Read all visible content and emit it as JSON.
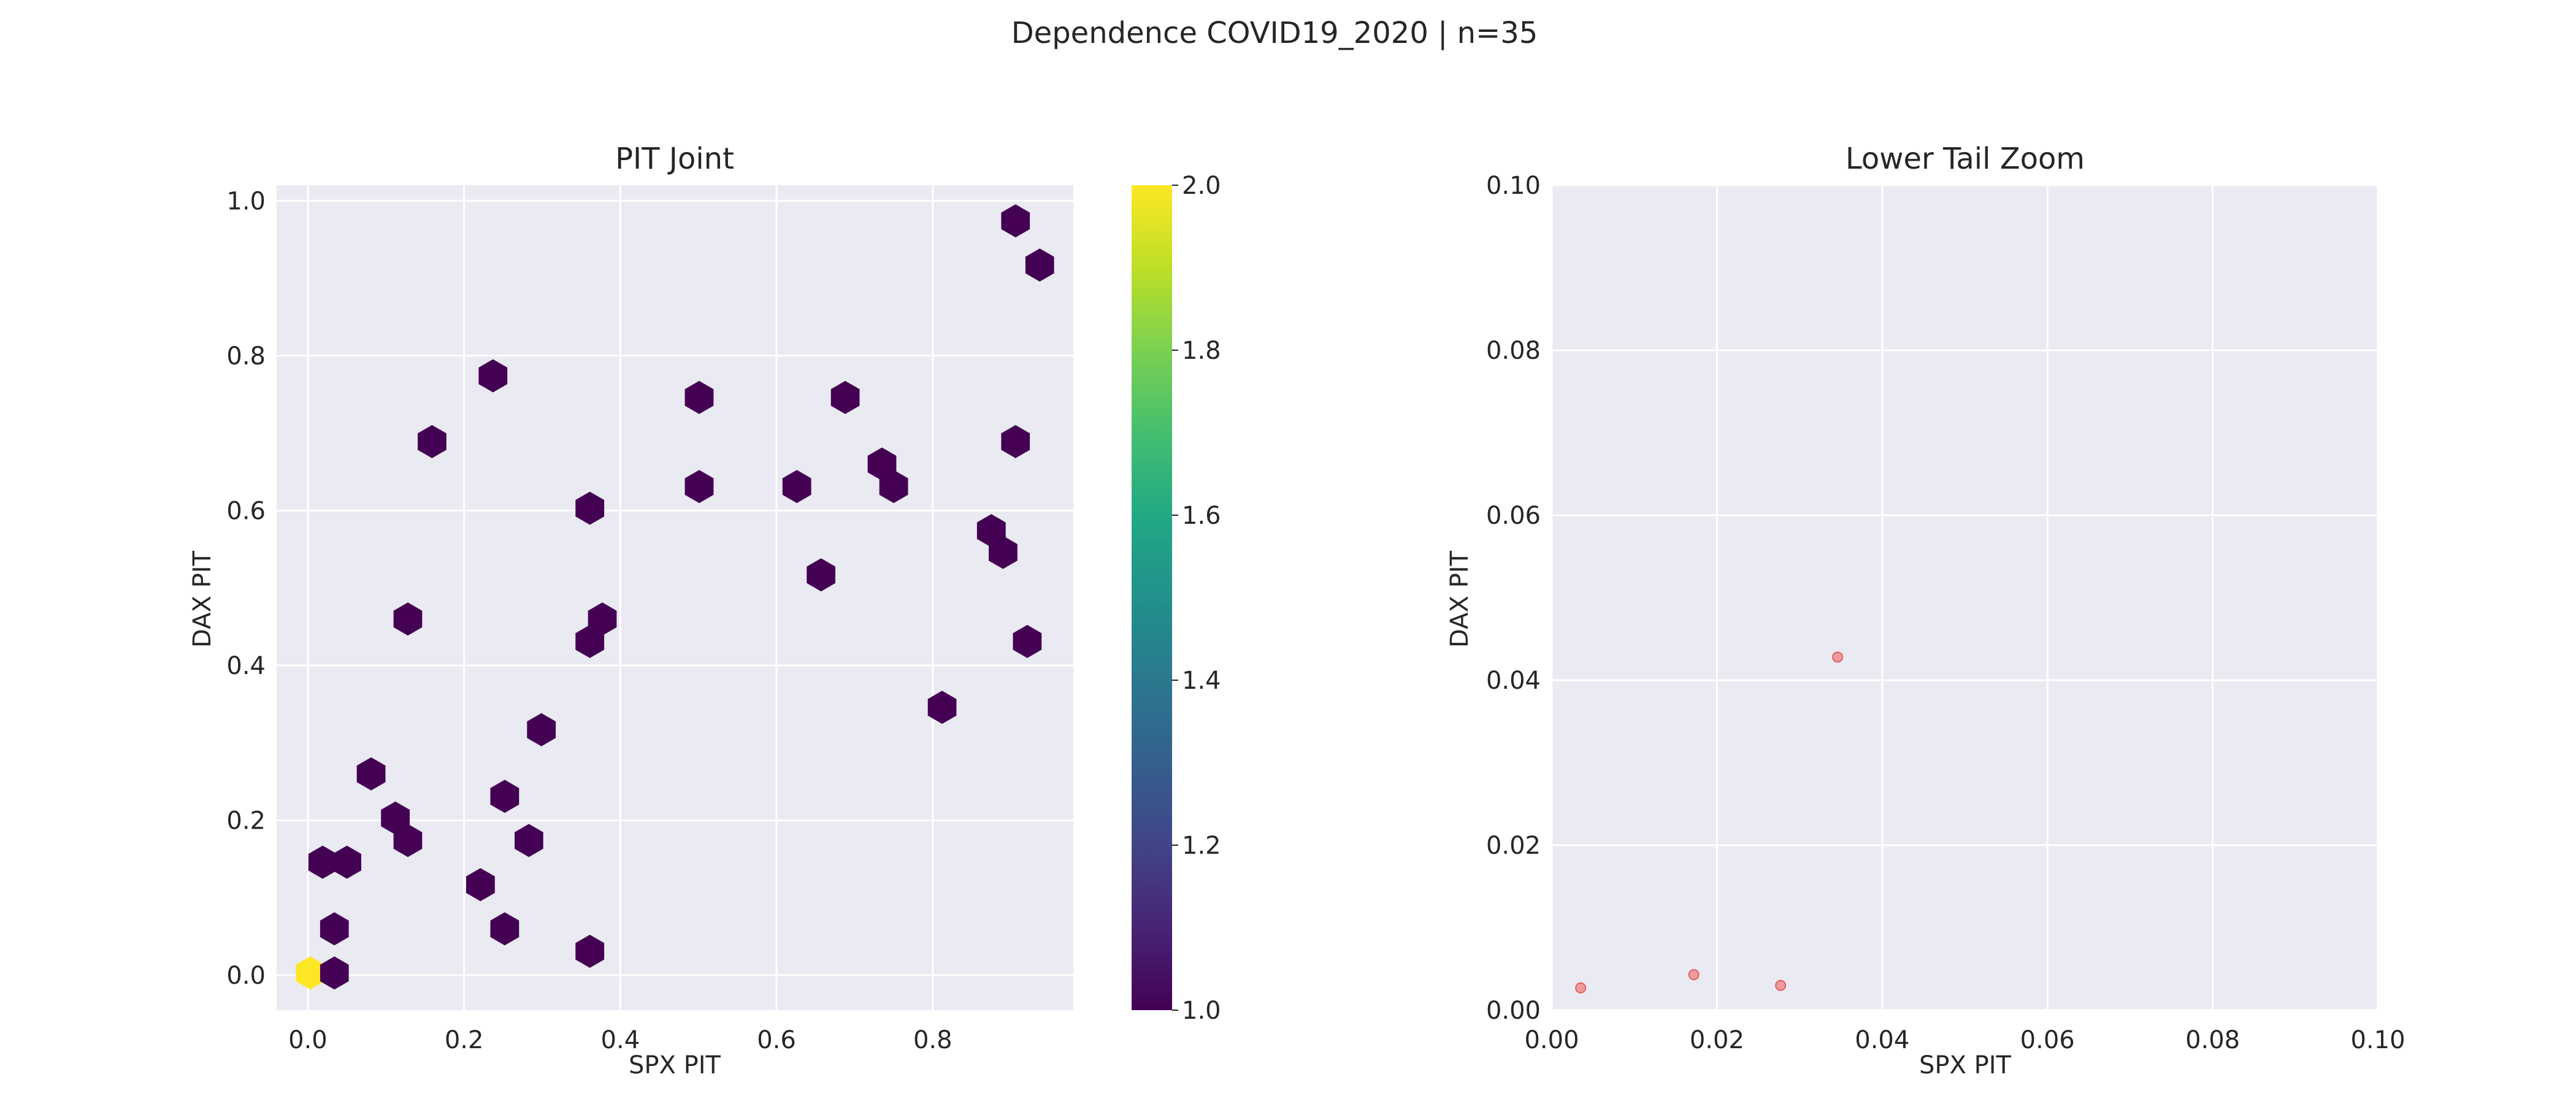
{
  "figure_title": "Dependence COVID19_2020 | n=35",
  "chart_data": [
    {
      "type": "hexbin",
      "title": "PIT Joint",
      "xlabel": "SPX PIT",
      "ylabel": "DAX PIT",
      "xlim": [
        -0.04,
        0.98
      ],
      "ylim": [
        -0.045,
        1.02
      ],
      "xticks": [
        "0.0",
        "0.2",
        "0.4",
        "0.6",
        "0.8"
      ],
      "xtick_values": [
        0,
        0.2,
        0.4,
        0.6,
        0.8
      ],
      "yticks": [
        "0.0",
        "0.2",
        "0.4",
        "0.6",
        "0.8",
        "1.0"
      ],
      "ytick_values": [
        0,
        0.2,
        0.4,
        0.6,
        0.8,
        1.0
      ],
      "grid": true,
      "colormap": "viridis",
      "cells": [
        {
          "x": 0.003,
          "y": 0.003,
          "count": 2
        },
        {
          "x": 0.034,
          "y": 0.003,
          "count": 1
        },
        {
          "x": 0.034,
          "y": 0.06,
          "count": 1
        },
        {
          "x": 0.019,
          "y": 0.146,
          "count": 1
        },
        {
          "x": 0.05,
          "y": 0.146,
          "count": 1
        },
        {
          "x": 0.081,
          "y": 0.26,
          "count": 1
        },
        {
          "x": 0.112,
          "y": 0.203,
          "count": 1
        },
        {
          "x": 0.128,
          "y": 0.174,
          "count": 1
        },
        {
          "x": 0.128,
          "y": 0.46,
          "count": 1
        },
        {
          "x": 0.159,
          "y": 0.689,
          "count": 1
        },
        {
          "x": 0.221,
          "y": 0.117,
          "count": 1
        },
        {
          "x": 0.237,
          "y": 0.774,
          "count": 1
        },
        {
          "x": 0.252,
          "y": 0.06,
          "count": 1
        },
        {
          "x": 0.252,
          "y": 0.231,
          "count": 1
        },
        {
          "x": 0.283,
          "y": 0.174,
          "count": 1
        },
        {
          "x": 0.299,
          "y": 0.317,
          "count": 1
        },
        {
          "x": 0.361,
          "y": 0.031,
          "count": 1
        },
        {
          "x": 0.361,
          "y": 0.431,
          "count": 1
        },
        {
          "x": 0.361,
          "y": 0.603,
          "count": 1
        },
        {
          "x": 0.377,
          "y": 0.46,
          "count": 1
        },
        {
          "x": 0.501,
          "y": 0.631,
          "count": 1
        },
        {
          "x": 0.501,
          "y": 0.746,
          "count": 1
        },
        {
          "x": 0.626,
          "y": 0.631,
          "count": 1
        },
        {
          "x": 0.657,
          "y": 0.517,
          "count": 1
        },
        {
          "x": 0.688,
          "y": 0.746,
          "count": 1
        },
        {
          "x": 0.735,
          "y": 0.66,
          "count": 1
        },
        {
          "x": 0.75,
          "y": 0.631,
          "count": 1
        },
        {
          "x": 0.812,
          "y": 0.346,
          "count": 1
        },
        {
          "x": 0.875,
          "y": 0.574,
          "count": 1
        },
        {
          "x": 0.89,
          "y": 0.546,
          "count": 1
        },
        {
          "x": 0.906,
          "y": 0.689,
          "count": 1
        },
        {
          "x": 0.906,
          "y": 0.974,
          "count": 1
        },
        {
          "x": 0.921,
          "y": 0.431,
          "count": 1
        },
        {
          "x": 0.937,
          "y": 0.917,
          "count": 1
        }
      ],
      "colorbar": {
        "min": 1.0,
        "max": 2.0,
        "tick_values": [
          1.0,
          1.2,
          1.4,
          1.6,
          1.8,
          2.0
        ],
        "ticks": [
          "1.0",
          "1.2",
          "1.4",
          "1.6",
          "1.8",
          "2.0"
        ]
      }
    },
    {
      "type": "scatter",
      "title": "Lower Tail Zoom",
      "xlabel": "SPX PIT",
      "ylabel": "DAX PIT",
      "xlim": [
        0,
        0.1
      ],
      "ylim": [
        0,
        0.1
      ],
      "xticks": [
        "0.00",
        "0.02",
        "0.04",
        "0.06",
        "0.08",
        "0.10"
      ],
      "xtick_values": [
        0,
        0.02,
        0.04,
        0.06,
        0.08,
        0.1
      ],
      "yticks": [
        "0.00",
        "0.02",
        "0.04",
        "0.06",
        "0.08",
        "0.10"
      ],
      "ytick_values": [
        0,
        0.02,
        0.04,
        0.06,
        0.08,
        0.1
      ],
      "grid": true,
      "marker_color": "#f08080",
      "points": [
        {
          "x": 0.0035,
          "y": 0.0027
        },
        {
          "x": 0.0172,
          "y": 0.0043
        },
        {
          "x": 0.0277,
          "y": 0.003
        },
        {
          "x": 0.0346,
          "y": 0.0428
        }
      ]
    }
  ]
}
